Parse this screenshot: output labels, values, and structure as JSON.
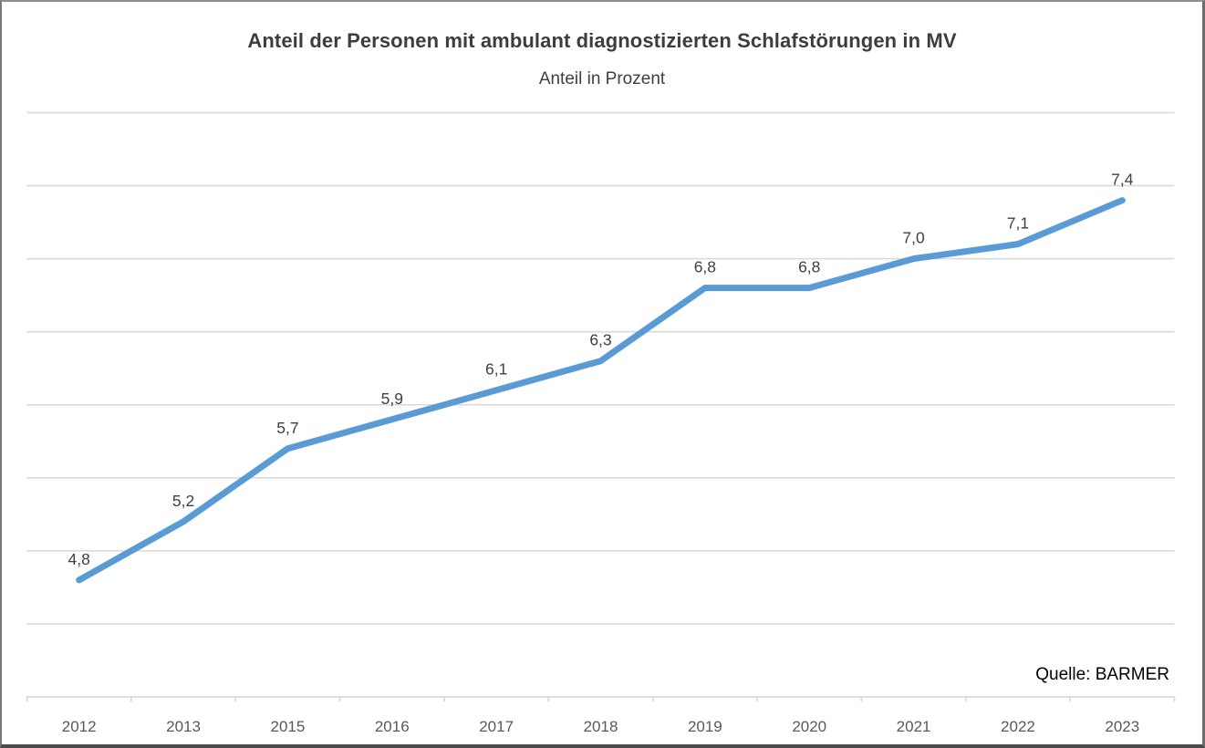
{
  "chart_data": {
    "type": "line",
    "title": "Anteil der Personen mit ambulant diagnostizierten Schlafstörungen in MV",
    "subtitle": "Anteil in Prozent",
    "categories": [
      "2012",
      "2013",
      "2015",
      "2016",
      "2017",
      "2018",
      "2019",
      "2020",
      "2021",
      "2022",
      "2023"
    ],
    "values": [
      4.8,
      5.2,
      5.7,
      5.9,
      6.1,
      6.3,
      6.8,
      6.8,
      7.0,
      7.1,
      7.4
    ],
    "value_labels": [
      "4,8",
      "5,2",
      "5,7",
      "5,9",
      "6,1",
      "6,3",
      "6,8",
      "6,8",
      "7,0",
      "7,1",
      "7,4"
    ],
    "xlabel": "",
    "ylabel": "",
    "ylim": [
      4.0,
      8.0
    ],
    "ytick_step": 0.5,
    "grid": true,
    "yaxis_tick_labels_visible": false,
    "legend": "none",
    "source": "Quelle: BARMER",
    "colors": {
      "line": "#5B9BD5",
      "gridline": "#D9D9D9",
      "axis_line": "#D9D9D9",
      "data_label": "#404040",
      "axis_text": "#595959",
      "title_text": "#3D3D3D",
      "source_text": "#000000"
    }
  }
}
